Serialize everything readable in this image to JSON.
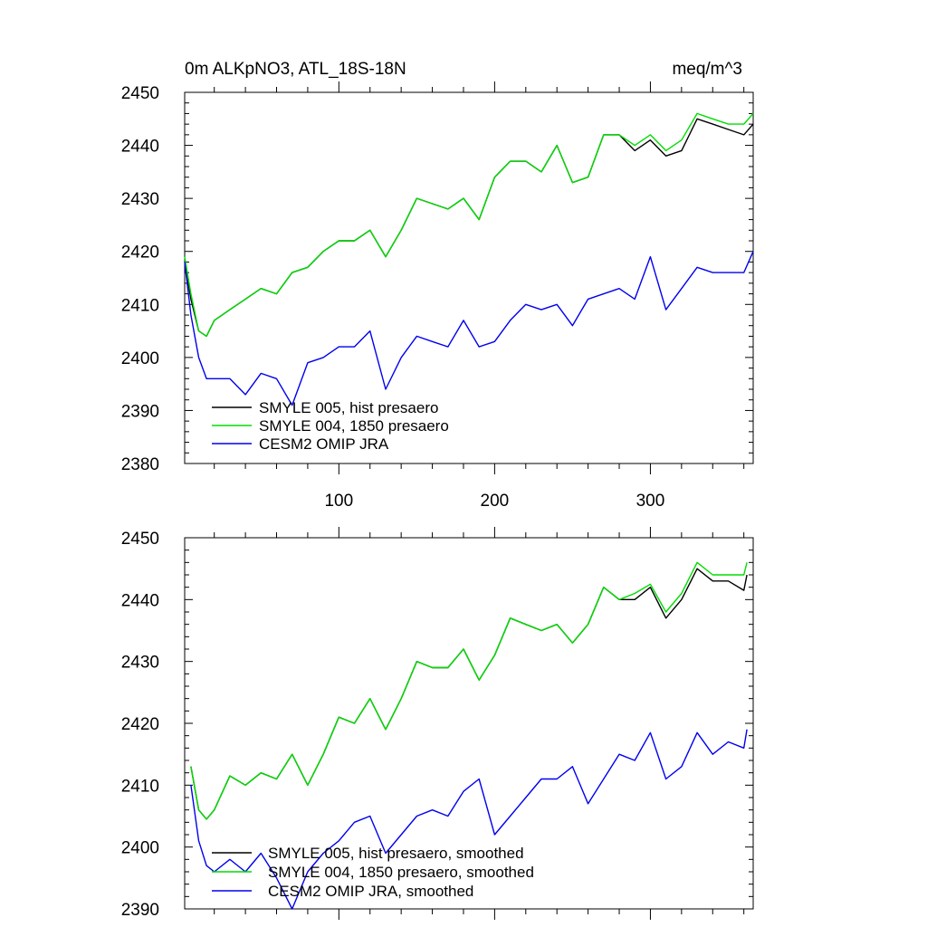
{
  "chart_data": [
    {
      "type": "line",
      "title_left": "0m ALKpNO3, ATL_18S-18N",
      "title_right": "meq/m^3",
      "xlabel": "",
      "ylabel": "",
      "xlim": [
        1,
        366
      ],
      "ylim": [
        2380,
        2450
      ],
      "xticks": [
        100,
        200,
        300
      ],
      "yticks": [
        2380,
        2390,
        2400,
        2410,
        2420,
        2430,
        2440,
        2450
      ],
      "legend_position": "bottom-left",
      "series": [
        {
          "name": "SMYLE 005, hist presaero",
          "color": "#000000",
          "x": [
            1,
            5,
            10,
            15,
            20,
            30,
            40,
            50,
            60,
            70,
            80,
            90,
            100,
            110,
            120,
            130,
            140,
            150,
            160,
            170,
            180,
            190,
            200,
            210,
            220,
            230,
            240,
            250,
            260,
            270,
            280,
            290,
            300,
            310,
            320,
            330,
            340,
            350,
            360,
            366
          ],
          "y": [
            2418,
            2411,
            2405,
            2404,
            2407,
            2409,
            2411,
            2413,
            2412,
            2416,
            2417,
            2420,
            2422,
            2422,
            2424,
            2419,
            2424,
            2430,
            2429,
            2428,
            2430,
            2426,
            2434,
            2437,
            2437,
            2435,
            2440,
            2433,
            2434,
            2442,
            2442,
            2439,
            2441,
            2438,
            2439,
            2445,
            2444,
            2443,
            2442,
            2444
          ]
        },
        {
          "name": "SMYLE 004, 1850 presaero",
          "color": "#00dd00",
          "x": [
            1,
            5,
            10,
            15,
            20,
            30,
            40,
            50,
            60,
            70,
            80,
            90,
            100,
            110,
            120,
            130,
            140,
            150,
            160,
            170,
            180,
            190,
            200,
            210,
            220,
            230,
            240,
            250,
            260,
            270,
            280,
            290,
            300,
            310,
            320,
            330,
            340,
            350,
            360,
            366
          ],
          "y": [
            2419,
            2412,
            2405,
            2404,
            2407,
            2409,
            2411,
            2413,
            2412,
            2416,
            2417,
            2420,
            2422,
            2422,
            2424,
            2419,
            2424,
            2430,
            2429,
            2428,
            2430,
            2426,
            2434,
            2437,
            2437,
            2435,
            2440,
            2433,
            2434,
            2442,
            2442,
            2440,
            2442,
            2439,
            2441,
            2446,
            2445,
            2444,
            2444,
            2446
          ]
        },
        {
          "name": "CESM2 OMIP JRA",
          "color": "#0000ee",
          "x": [
            1,
            5,
            10,
            15,
            20,
            30,
            40,
            50,
            60,
            70,
            80,
            90,
            100,
            110,
            120,
            130,
            140,
            150,
            160,
            170,
            180,
            190,
            200,
            210,
            220,
            230,
            240,
            250,
            260,
            270,
            280,
            290,
            300,
            310,
            320,
            330,
            340,
            350,
            360,
            366
          ],
          "y": [
            2418,
            2408,
            2400,
            2396,
            2396,
            2396,
            2393,
            2397,
            2396,
            2391,
            2399,
            2400,
            2402,
            2402,
            2405,
            2394,
            2400,
            2404,
            2403,
            2402,
            2407,
            2402,
            2403,
            2407,
            2410,
            2409,
            2410,
            2406,
            2411,
            2412,
            2413,
            2411,
            2419,
            2409,
            2413,
            2417,
            2416,
            2416,
            2416,
            2420
          ]
        }
      ]
    },
    {
      "type": "line",
      "title": "",
      "xlabel": "",
      "ylabel": "",
      "xlim": [
        1,
        366
      ],
      "ylim": [
        2390,
        2450
      ],
      "xticks": [
        100,
        200,
        300
      ],
      "yticks": [
        2390,
        2400,
        2410,
        2420,
        2430,
        2440,
        2450
      ],
      "legend_position": "bottom-left",
      "series": [
        {
          "name": "SMYLE 005, hist presaero, smoothed",
          "color": "#000000",
          "x": [
            5,
            10,
            15,
            20,
            30,
            40,
            50,
            60,
            70,
            80,
            90,
            100,
            110,
            120,
            130,
            140,
            150,
            160,
            170,
            180,
            190,
            200,
            210,
            220,
            230,
            240,
            250,
            260,
            270,
            280,
            290,
            300,
            310,
            320,
            330,
            340,
            350,
            360,
            362
          ],
          "y": [
            2413,
            2406,
            2404.5,
            2406,
            2411.5,
            2410,
            2412,
            2411,
            2415,
            2410,
            2415,
            2421,
            2420,
            2424,
            2419,
            2424,
            2430,
            2429,
            2429,
            2432,
            2427,
            2431,
            2437,
            2436,
            2435,
            2436,
            2433,
            2436,
            2442,
            2440,
            2440,
            2442,
            2437,
            2440,
            2445,
            2443,
            2443,
            2441.5,
            2444
          ]
        },
        {
          "name": "SMYLE 004, 1850 presaero, smoothed",
          "color": "#00dd00",
          "x": [
            5,
            10,
            15,
            20,
            30,
            40,
            50,
            60,
            70,
            80,
            90,
            100,
            110,
            120,
            130,
            140,
            150,
            160,
            170,
            180,
            190,
            200,
            210,
            220,
            230,
            240,
            250,
            260,
            270,
            280,
            290,
            300,
            310,
            320,
            330,
            340,
            350,
            360,
            362
          ],
          "y": [
            2413,
            2406,
            2404.5,
            2406,
            2411.5,
            2410,
            2412,
            2411,
            2415,
            2410,
            2415,
            2421,
            2420,
            2424,
            2419,
            2424,
            2430,
            2429,
            2429,
            2432,
            2427,
            2431,
            2437,
            2436,
            2435,
            2436,
            2433,
            2436,
            2442,
            2440,
            2441,
            2442.5,
            2438,
            2441,
            2446,
            2444,
            2444,
            2444,
            2446
          ]
        },
        {
          "name": "CESM2 OMIP JRA, smoothed",
          "color": "#0000ee",
          "x": [
            5,
            10,
            15,
            20,
            30,
            40,
            50,
            60,
            70,
            80,
            90,
            100,
            110,
            120,
            130,
            140,
            150,
            160,
            170,
            180,
            190,
            200,
            210,
            220,
            230,
            240,
            250,
            260,
            270,
            280,
            290,
            300,
            310,
            320,
            330,
            340,
            350,
            360,
            362
          ],
          "y": [
            2410,
            2401,
            2397,
            2396,
            2398,
            2396,
            2399,
            2395,
            2390,
            2396,
            2399,
            2401,
            2404,
            2405,
            2399,
            2402,
            2405,
            2406,
            2405,
            2409,
            2411,
            2402,
            2405,
            2408,
            2411,
            2411,
            2413,
            2407,
            2411,
            2415,
            2414,
            2418.5,
            2411,
            2413,
            2418.5,
            2415,
            2417,
            2416,
            2419
          ]
        }
      ]
    }
  ]
}
